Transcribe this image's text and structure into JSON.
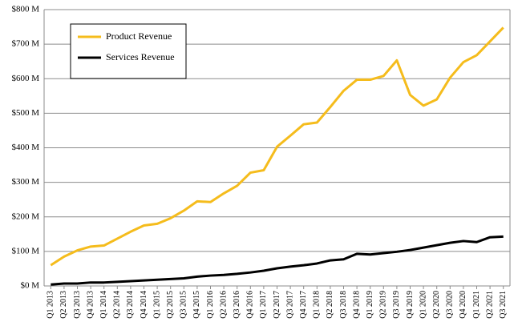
{
  "chart_data": {
    "type": "line",
    "categories": [
      "Q1 2013",
      "Q2 2013",
      "Q3 2013",
      "Q4 2013",
      "Q1 2014",
      "Q2 2014",
      "Q3 2014",
      "Q4 2014",
      "Q1 2015",
      "Q2 2015",
      "Q3 2015",
      "Q4 2015",
      "Q1 2016",
      "Q2 2016",
      "Q3 2016",
      "Q4 2016",
      "Q1 2017",
      "Q2 2017",
      "Q3 2017",
      "Q4 2017",
      "Q1 2018",
      "Q2 2018",
      "Q3 2018",
      "Q4 2018",
      "Q1 2019",
      "Q2 2019",
      "Q3 2019",
      "Q4 2019",
      "Q1 2020",
      "Q2 2020",
      "Q3 2020",
      "Q4 2020",
      "Q1 2021",
      "Q2 2021",
      "Q3 2021"
    ],
    "series": [
      {
        "name": "Product Revenue",
        "color": "#f5bc1c",
        "values": [
          60,
          85,
          103,
          114,
          117,
          137,
          157,
          175,
          180,
          196,
          218,
          245,
          243,
          268,
          290,
          328,
          335,
          403,
          435,
          468,
          473,
          518,
          565,
          597,
          597,
          608,
          653,
          553,
          522,
          540,
          603,
          648,
          668,
          708,
          748
        ]
      },
      {
        "name": "Services Revenue",
        "color": "#000000",
        "values": [
          4,
          7,
          7,
          10,
          10,
          12,
          14,
          16,
          18,
          20,
          22,
          27,
          30,
          32,
          35,
          39,
          44,
          51,
          56,
          60,
          65,
          74,
          77,
          93,
          91,
          95,
          99,
          104,
          111,
          118,
          125,
          130,
          127,
          141,
          143
        ]
      }
    ],
    "ylim": [
      0,
      800
    ],
    "yticks": [
      {
        "value": 0,
        "label": "$0 M"
      },
      {
        "value": 100,
        "label": "$100 M"
      },
      {
        "value": 200,
        "label": "$200 M"
      },
      {
        "value": 300,
        "label": "$300 M"
      },
      {
        "value": 400,
        "label": "$400 M"
      },
      {
        "value": 500,
        "label": "$500 M"
      },
      {
        "value": 600,
        "label": "$600 M"
      },
      {
        "value": 700,
        "label": "$700 M"
      },
      {
        "value": 800,
        "label": "$800 M"
      }
    ],
    "grid": true,
    "legend": "upper left"
  }
}
